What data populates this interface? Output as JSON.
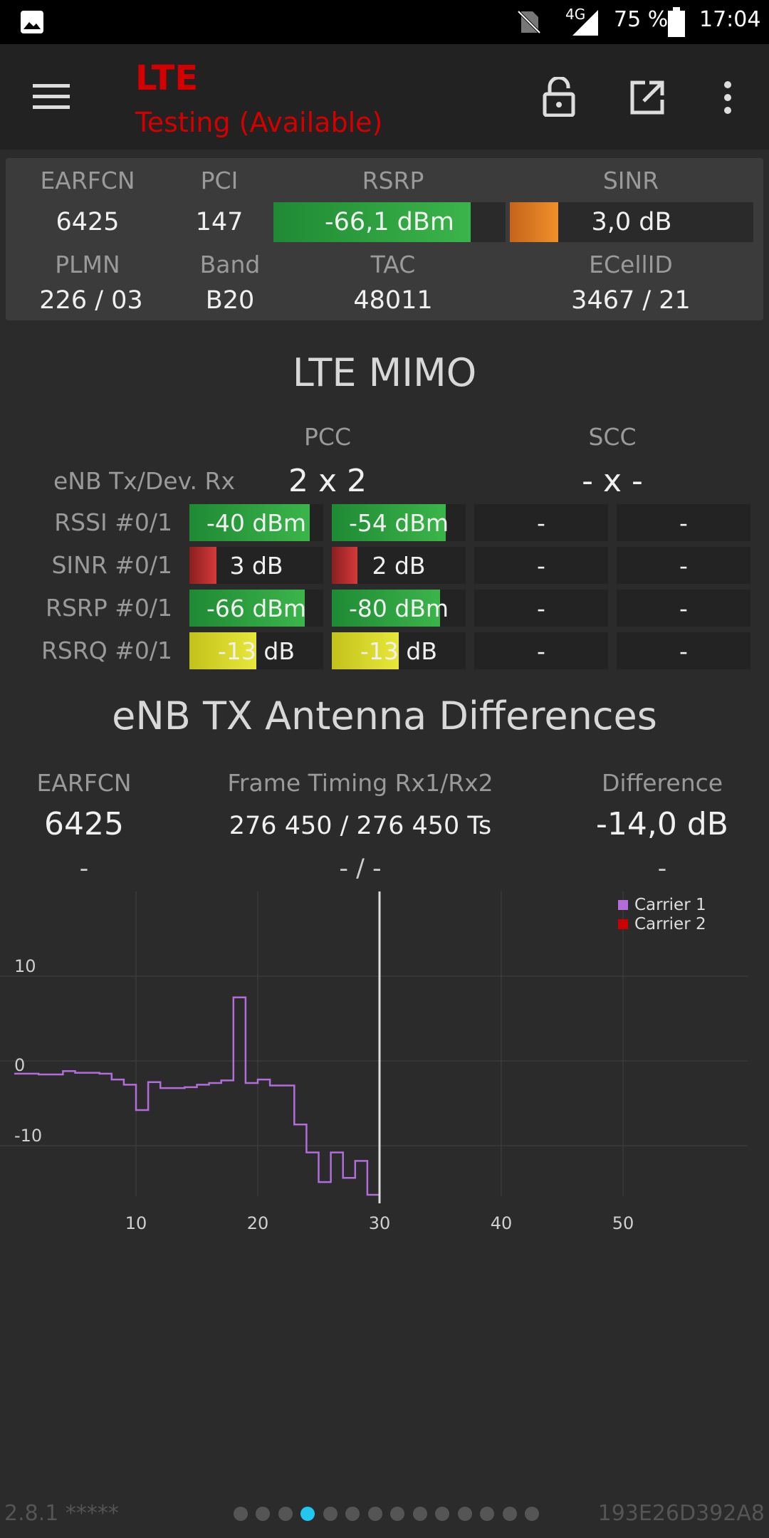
{
  "status_bar": {
    "network": "4G",
    "battery": "75 %",
    "time": "17:04"
  },
  "app_bar": {
    "title": "LTE",
    "subtitle": "Testing (Available)",
    "icons": [
      "menu-icon",
      "lock-icon",
      "open-external-icon",
      "more-vert-icon"
    ]
  },
  "summary": {
    "labels": {
      "earfcn": "EARFCN",
      "pci": "PCI",
      "rsrp": "RSRP",
      "sinr": "SINR",
      "plmn": "PLMN",
      "band": "Band",
      "tac": "TAC",
      "ecellid": "ECellID"
    },
    "earfcn": "6425",
    "pci": "147",
    "rsrp": {
      "text": "-66,1 dBm",
      "level": 0.85,
      "color": "#3bb54a"
    },
    "sinr": {
      "text": "3,0 dB",
      "level": 0.2,
      "color": "#f0902a"
    },
    "plmn": "226 / 03",
    "band": "B20",
    "tac": "48011",
    "ecellid": "3467 / 21"
  },
  "mimo": {
    "title": "LTE MIMO",
    "pcc": "PCC",
    "scc": "SCC",
    "txrx_label": "eNB Tx/Dev. Rx",
    "pcc_txrx": "2 x 2",
    "scc_txrx": "- x -",
    "rows": [
      {
        "label": "RSSI #0/1",
        "c0": "-40 dBm",
        "l0": 0.9,
        "k0": "green",
        "c1": "-54 dBm",
        "l1": 0.85,
        "k1": "green",
        "c2": "-",
        "c3": "-"
      },
      {
        "label": "SINR #0/1",
        "c0": "3 dB",
        "l0": 0.2,
        "k0": "red",
        "c1": "2 dB",
        "l1": 0.19,
        "k1": "red",
        "c2": "-",
        "c3": "-"
      },
      {
        "label": "RSRP #0/1",
        "c0": "-66 dBm",
        "l0": 0.86,
        "k0": "green",
        "c1": "-80 dBm",
        "l1": 0.81,
        "k1": "green",
        "c2": "-",
        "c3": "-"
      },
      {
        "label": "RSRQ #0/1",
        "c0": "-13 dB",
        "l0": 0.5,
        "k0": "yellow",
        "c1": "-13 dB",
        "l1": 0.5,
        "k1": "yellow",
        "c2": "-",
        "c3": "-"
      }
    ]
  },
  "antenna": {
    "title": "eNB TX Antenna Differences",
    "earfcn_label": "EARFCN",
    "timing_label": "Frame Timing Rx1/Rx2",
    "diff_label": "Difference",
    "earfcn": "6425",
    "timing": "276 450 / 276 450 Ts",
    "difference": "-14,0 dB",
    "earfcn2": "-",
    "timing2": "- / -",
    "difference2": "-"
  },
  "chart_data": {
    "type": "line",
    "x_ticks": [
      10,
      20,
      30,
      40,
      50
    ],
    "y_ticks": [
      10,
      0,
      -10
    ],
    "xlim": [
      0,
      60
    ],
    "ylim": [
      -18,
      20
    ],
    "cursor_x": 30,
    "grid": true,
    "legend_position": "top-right",
    "series": [
      {
        "name": "Carrier 1",
        "color": "#b26ddb",
        "x": [
          0,
          1,
          2,
          3,
          4,
          5,
          6,
          7,
          8,
          9,
          10,
          11,
          12,
          13,
          14,
          15,
          16,
          17,
          18,
          19,
          20,
          21,
          22,
          23,
          24,
          25,
          26,
          27,
          28,
          29,
          30
        ],
        "y": [
          -1.5,
          -1.5,
          -1.6,
          -1.6,
          -1.2,
          -1.4,
          -1.4,
          -1.5,
          -2.2,
          -2.8,
          -5.8,
          -2.5,
          -3.2,
          -3.2,
          -3.1,
          -2.8,
          -2.6,
          -2.3,
          7.5,
          -2.6,
          -2.2,
          -2.9,
          -2.9,
          -7.5,
          -10.8,
          -14.3,
          -10.8,
          -13.8,
          -11.8,
          -15.8,
          -16
        ]
      },
      {
        "name": "Carrier 2",
        "color": "#cc0000",
        "x": [],
        "y": []
      }
    ]
  },
  "footer": {
    "version": "2.8.1 *****",
    "device_id": "193E26D392A8",
    "page_count": 14,
    "active_page": 4
  }
}
